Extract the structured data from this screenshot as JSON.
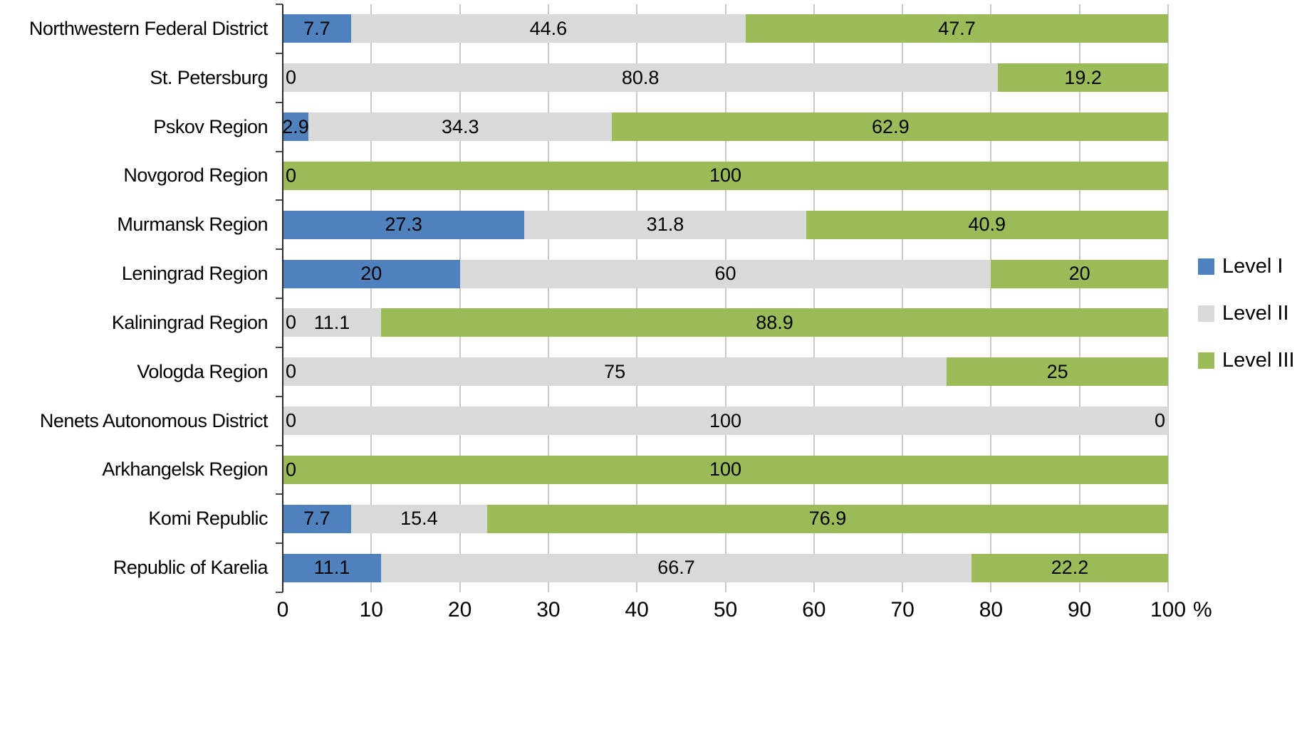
{
  "chart_data": {
    "type": "bar",
    "orientation": "horizontal",
    "stacked": true,
    "title": "",
    "xlabel": "",
    "ylabel": "",
    "xlim": [
      0,
      100
    ],
    "x_ticks": [
      0,
      10,
      20,
      30,
      40,
      50,
      60,
      70,
      80,
      90,
      100
    ],
    "x_axis_suffix": "%",
    "grid": true,
    "legend_position": "right",
    "categories": [
      "Northwestern Federal District",
      "St. Petersburg",
      "Pskov Region",
      "Novgorod Region",
      "Murmansk Region",
      "Leningrad Region",
      "Kaliningrad Region",
      "Vologda Region",
      "Nenets Autonomous District",
      "Arkhangelsk Region",
      "Komi Republic",
      "Republic of Karelia"
    ],
    "series": [
      {
        "name": "Level I",
        "color": "#4f81bd",
        "values": [
          7.7,
          0,
          2.9,
          0,
          27.3,
          20,
          0,
          0,
          0,
          0,
          7.7,
          11.1
        ]
      },
      {
        "name": "Level II",
        "color": "#d9d9d9",
        "values": [
          44.6,
          80.8,
          34.3,
          0,
          31.8,
          60,
          11.1,
          75,
          100,
          0,
          15.4,
          66.7
        ]
      },
      {
        "name": "Level III",
        "color": "#9bbb59",
        "values": [
          47.7,
          19.2,
          62.9,
          100,
          40.9,
          20,
          88.9,
          25,
          0,
          100,
          76.9,
          22.2
        ]
      }
    ],
    "colors": {
      "gridline": "#c9c9c9",
      "axis_line": "#2b2b2b",
      "label_text": "#000000"
    }
  }
}
